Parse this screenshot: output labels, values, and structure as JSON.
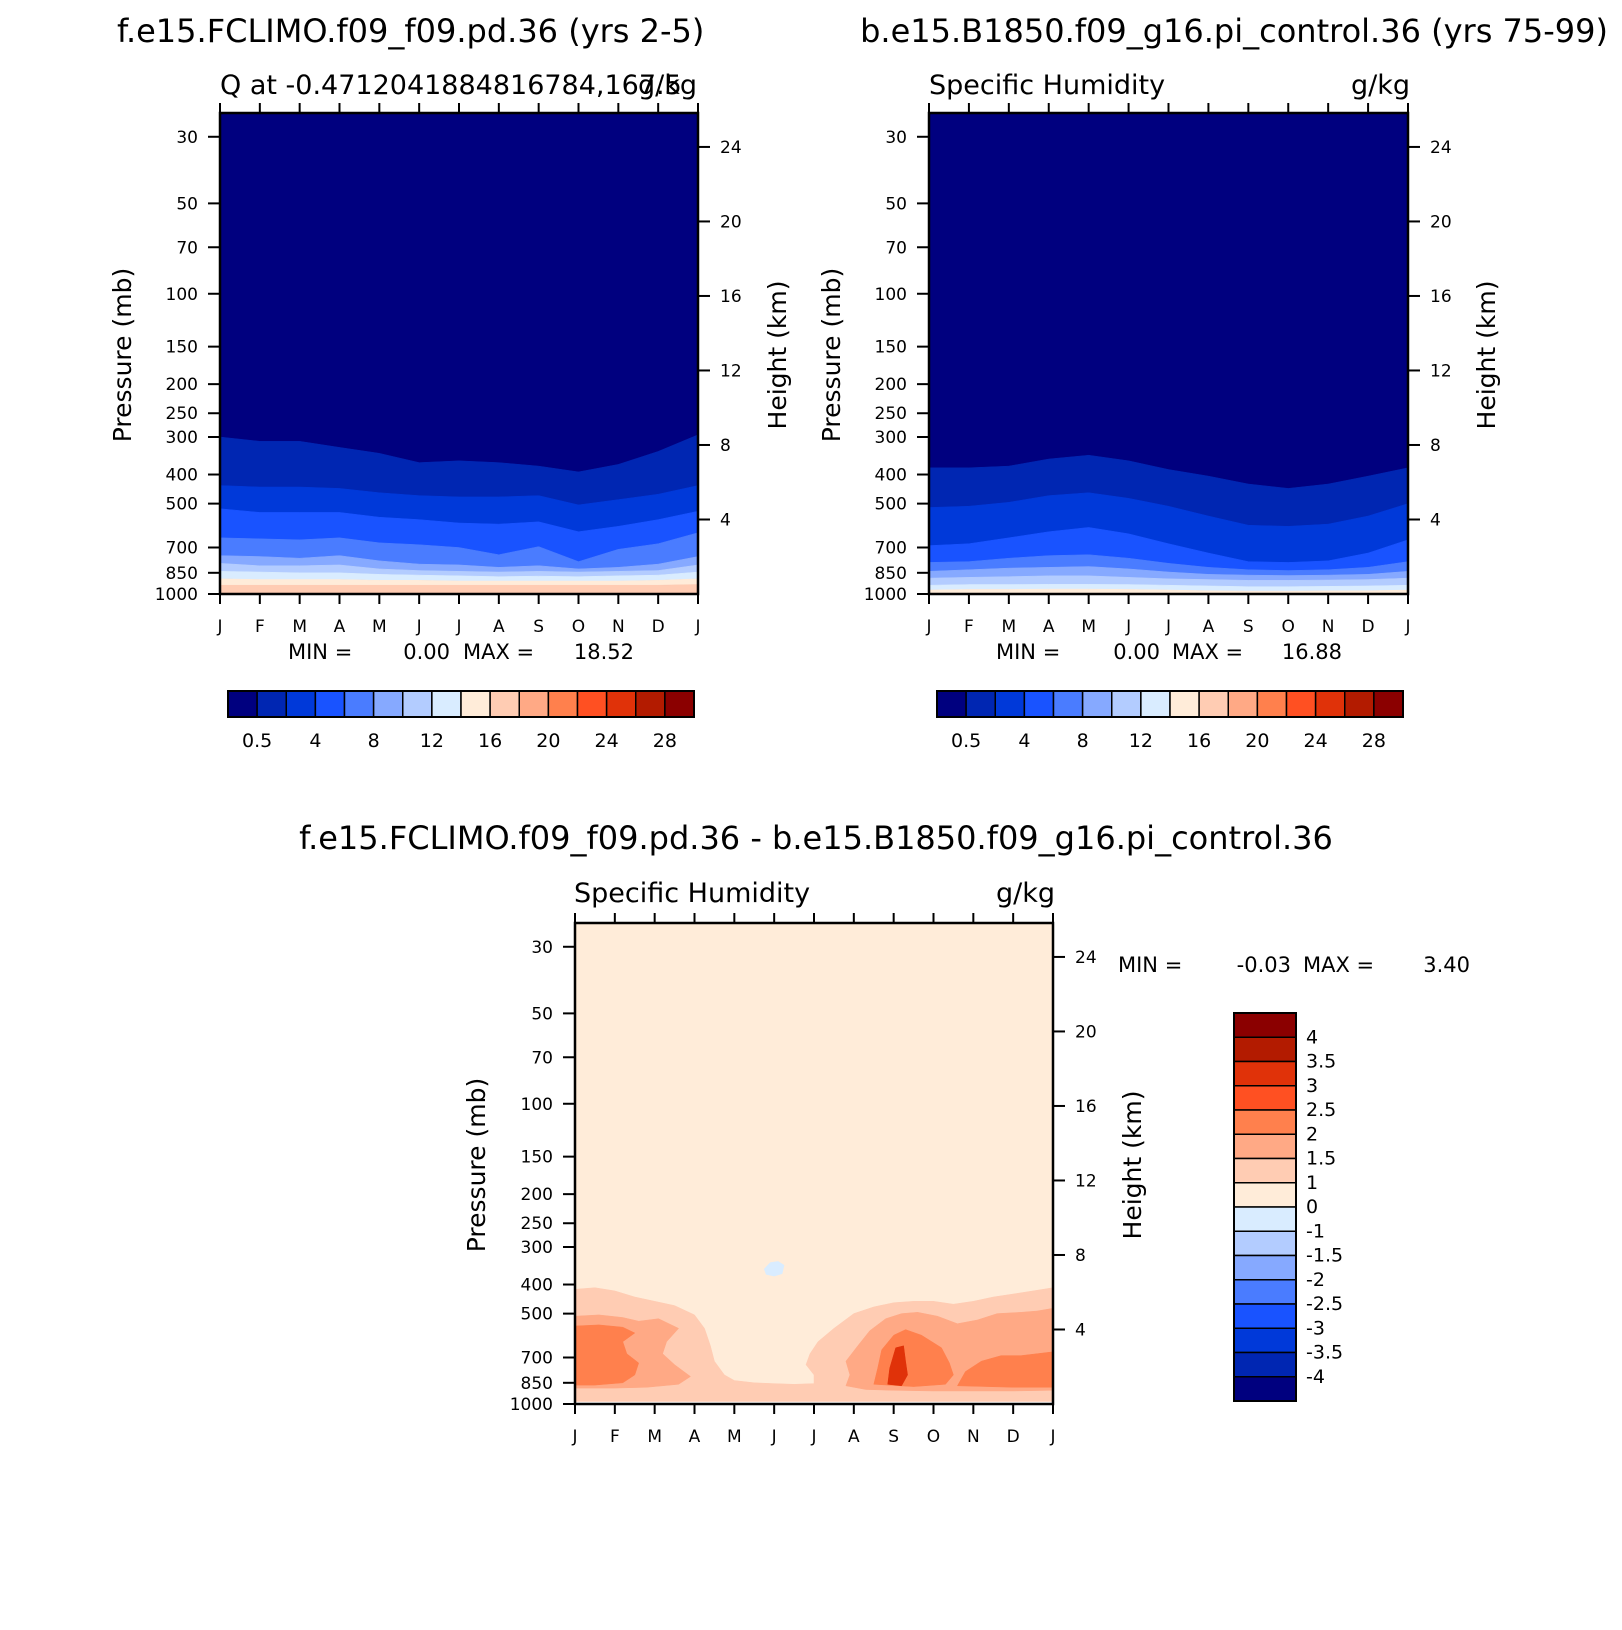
{
  "chart_data": [
    {
      "type": "heatmap",
      "title": "f.e15.FCLIMO.f09_f09.pd.36 (yrs 2-5)",
      "left_string": "Q at -0.4712041884816784,167.5",
      "right_string": "g/kg",
      "xlabel": "",
      "ylabel": "Pressure (mb)",
      "ylabel_right": "Height (km)",
      "x_ticks": [
        "J",
        "F",
        "M",
        "A",
        "M",
        "J",
        "J",
        "A",
        "S",
        "O",
        "N",
        "D",
        "J"
      ],
      "y_ticks": [
        "30",
        "50",
        "70",
        "100",
        "150",
        "200",
        "250",
        "300",
        "400",
        "500",
        "700",
        "850",
        "1000"
      ],
      "y_ticks_right": [
        "4",
        "8",
        "12",
        "16",
        "20",
        "24"
      ],
      "ylim": [
        1000,
        25
      ],
      "y_scale": "log",
      "grid": false,
      "minmax": {
        "min_label": "MIN =",
        "min": "0.00",
        "max_label": "MAX =",
        "max": "18.52"
      },
      "colorbar": {
        "orientation": "horizontal",
        "labels": [
          "0.5",
          "4",
          "8",
          "12",
          "16",
          "20",
          "24",
          "28"
        ]
      },
      "contour_boundaries_mb": {
        "levels": [
          "0.5",
          "2",
          "4",
          "6",
          "8",
          "10",
          "12",
          "14",
          "16",
          "18"
        ],
        "p": [
          [
            300,
            310,
            310,
            325,
            340,
            365,
            360,
            365,
            375,
            392,
            370,
            335,
            295
          ],
          [
            435,
            440,
            440,
            445,
            460,
            470,
            475,
            475,
            470,
            505,
            485,
            465,
            435
          ],
          [
            520,
            535,
            535,
            535,
            555,
            565,
            580,
            585,
            575,
            620,
            595,
            565,
            530
          ],
          [
            650,
            655,
            660,
            650,
            675,
            685,
            700,
            740,
            695,
            780,
            710,
            680,
            625
          ],
          [
            745,
            750,
            760,
            745,
            775,
            795,
            800,
            815,
            805,
            825,
            815,
            795,
            750
          ],
          [
            790,
            805,
            805,
            800,
            825,
            835,
            840,
            845,
            840,
            845,
            840,
            835,
            800
          ],
          [
            840,
            845,
            850,
            850,
            860,
            865,
            870,
            875,
            872,
            875,
            870,
            865,
            845
          ],
          [
            890,
            895,
            895,
            895,
            900,
            900,
            905,
            905,
            905,
            905,
            905,
            900,
            890
          ],
          [
            935,
            935,
            935,
            935,
            935,
            935,
            935,
            935,
            935,
            935,
            935,
            935,
            930
          ],
          [
            1000,
            1000,
            1000,
            1000,
            1000,
            1000,
            1000,
            1000,
            1000,
            1000,
            1000,
            1000,
            1000
          ]
        ]
      }
    },
    {
      "type": "heatmap",
      "title": "b.e15.B1850.f09_g16.pi_control.36 (yrs 75-99)",
      "left_string": "Specific Humidity",
      "right_string": "g/kg",
      "xlabel": "",
      "ylabel": "Pressure (mb)",
      "ylabel_right": "Height (km)",
      "x_ticks": [
        "J",
        "F",
        "M",
        "A",
        "M",
        "J",
        "J",
        "A",
        "S",
        "O",
        "N",
        "D",
        "J"
      ],
      "y_ticks": [
        "30",
        "50",
        "70",
        "100",
        "150",
        "200",
        "250",
        "300",
        "400",
        "500",
        "700",
        "850",
        "1000"
      ],
      "y_ticks_right": [
        "4",
        "8",
        "12",
        "16",
        "20",
        "24"
      ],
      "ylim": [
        1000,
        25
      ],
      "y_scale": "log",
      "grid": false,
      "minmax": {
        "min_label": "MIN =",
        "min": "0.00",
        "max_label": "MAX =",
        "max": "16.88"
      },
      "colorbar": {
        "orientation": "horizontal",
        "labels": [
          "0.5",
          "4",
          "8",
          "12",
          "16",
          "20",
          "24",
          "28"
        ]
      },
      "contour_boundaries_mb": {
        "levels": [
          "0.5",
          "2",
          "4",
          "6",
          "8",
          "10",
          "12",
          "14",
          "16"
        ],
        "p": [
          [
            380,
            380,
            375,
            355,
            345,
            360,
            385,
            405,
            430,
            445,
            430,
            405,
            380
          ],
          [
            515,
            510,
            495,
            470,
            460,
            480,
            510,
            550,
            590,
            595,
            585,
            550,
            500
          ],
          [
            690,
            680,
            650,
            620,
            600,
            630,
            680,
            730,
            780,
            785,
            775,
            730,
            660
          ],
          [
            785,
            780,
            760,
            745,
            740,
            760,
            790,
            815,
            830,
            835,
            830,
            815,
            780
          ],
          [
            840,
            830,
            820,
            815,
            810,
            825,
            845,
            860,
            865,
            868,
            865,
            860,
            840
          ],
          [
            885,
            880,
            875,
            870,
            870,
            880,
            890,
            895,
            900,
            900,
            898,
            895,
            885
          ],
          [
            935,
            930,
            930,
            928,
            928,
            930,
            935,
            940,
            945,
            945,
            943,
            940,
            935
          ],
          [
            970,
            965,
            965,
            963,
            963,
            965,
            970,
            975,
            978,
            978,
            976,
            975,
            970
          ],
          [
            1000,
            1000,
            1000,
            1000,
            1000,
            1000,
            1000,
            1000,
            1000,
            1000,
            1000,
            1000,
            1000
          ]
        ]
      }
    },
    {
      "type": "heatmap",
      "title": "f.e15.FCLIMO.f09_f09.pd.36 - b.e15.B1850.f09_g16.pi_control.36",
      "left_string": "Specific Humidity",
      "right_string": "g/kg",
      "xlabel": "",
      "ylabel": "Pressure (mb)",
      "ylabel_right": "Height (km)",
      "x_ticks": [
        "J",
        "F",
        "M",
        "A",
        "M",
        "J",
        "J",
        "A",
        "S",
        "O",
        "N",
        "D",
        "J"
      ],
      "y_ticks": [
        "30",
        "50",
        "70",
        "100",
        "150",
        "200",
        "250",
        "300",
        "400",
        "500",
        "700",
        "850",
        "1000"
      ],
      "y_ticks_right": [
        "4",
        "8",
        "12",
        "16",
        "20",
        "24"
      ],
      "ylim": [
        1000,
        25
      ],
      "y_scale": "log",
      "grid": false,
      "minmax": {
        "min_label": "MIN =",
        "min": "-0.03",
        "max_label": "MAX =",
        "max": "3.40"
      },
      "colorbar": {
        "orientation": "vertical",
        "labels": [
          "4",
          "3.5",
          "3",
          "2.5",
          "2",
          "1.5",
          "1",
          "0",
          "-1",
          "-1.5",
          "-2",
          "-2.5",
          "-3",
          "-3.5",
          "-4"
        ]
      },
      "background_level": "0 to 1",
      "features": [
        {
          "level": "1 to 1.5",
          "month": [
            0,
            12
          ],
          "p": [
            410,
            1000
          ]
        },
        {
          "level": "1.5 to 2",
          "month": [
            0,
            2.5
          ],
          "p": [
            510,
            900
          ]
        },
        {
          "level": "1.5 to 2",
          "month": [
            6.7,
            12
          ],
          "p": [
            480,
            900
          ]
        },
        {
          "level": "2 to 2.5",
          "month": [
            7.5,
            9.5
          ],
          "p": [
            560,
            880
          ]
        },
        {
          "level": "2 to 2.5",
          "month": [
            9.5,
            12
          ],
          "p": [
            700,
            880
          ]
        },
        {
          "level": "3 to 3.5",
          "month": [
            7.8,
            8.3
          ],
          "p": [
            620,
            870
          ]
        },
        {
          "level": "-1 to 0",
          "month": [
            4.75,
            5.25
          ],
          "p": [
            335,
            375
          ]
        }
      ]
    }
  ],
  "colors": {
    "scale": [
      "#00007f",
      "#0026b2",
      "#0039d9",
      "#1953ff",
      "#4a7cff",
      "#86a9ff",
      "#b3ccff",
      "#d9ecff",
      "#ffecd9",
      "#ffccb3",
      "#ffa985",
      "#ff804d",
      "#ff5022",
      "#e03209",
      "#b31b00",
      "#8b0000"
    ],
    "diff_scale": [
      "#00007f",
      "#0026b2",
      "#0039d9",
      "#1953ff",
      "#4a7cff",
      "#86a9ff",
      "#b3ccff",
      "#d9ecff",
      "#ffecd9",
      "#ffccb3",
      "#ffa985",
      "#ff804d",
      "#ff5022",
      "#e03209",
      "#b31b00",
      "#8b0000"
    ]
  }
}
